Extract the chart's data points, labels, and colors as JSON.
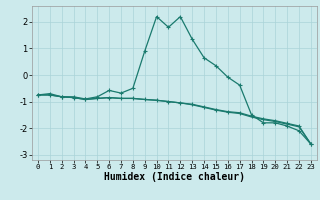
{
  "xlabel": "Humidex (Indice chaleur)",
  "background_color": "#cceaec",
  "grid_color": "#aad4d8",
  "line_color": "#1a7a6e",
  "xlim": [
    -0.5,
    23.5
  ],
  "ylim": [
    -3.2,
    2.6
  ],
  "xticks": [
    0,
    1,
    2,
    3,
    4,
    5,
    6,
    7,
    8,
    9,
    10,
    11,
    12,
    13,
    14,
    15,
    16,
    17,
    18,
    19,
    20,
    21,
    22,
    23
  ],
  "yticks": [
    -3,
    -2,
    -1,
    0,
    1,
    2
  ],
  "series1_x": [
    0,
    1,
    2,
    3,
    4,
    5,
    6,
    7,
    8,
    9,
    10,
    11,
    12,
    13,
    14,
    15,
    16,
    17,
    18,
    19,
    20,
    21,
    22,
    23
  ],
  "series1_y": [
    -0.75,
    -0.7,
    -0.82,
    -0.82,
    -0.9,
    -0.82,
    -0.58,
    -0.68,
    -0.5,
    0.9,
    2.2,
    1.8,
    2.2,
    1.35,
    0.65,
    0.35,
    -0.08,
    -0.38,
    -1.5,
    -1.8,
    -1.8,
    -1.92,
    -2.1,
    -2.6
  ],
  "series2_x": [
    0,
    1,
    2,
    3,
    4,
    5,
    6,
    7,
    8,
    9,
    10,
    11,
    12,
    13,
    14,
    15,
    16,
    17,
    18,
    19,
    20,
    21,
    22,
    23
  ],
  "series2_y": [
    -0.75,
    -0.75,
    -0.82,
    -0.85,
    -0.92,
    -0.88,
    -0.85,
    -0.88,
    -0.88,
    -0.92,
    -0.95,
    -1.0,
    -1.05,
    -1.1,
    -1.2,
    -1.3,
    -1.38,
    -1.42,
    -1.55,
    -1.65,
    -1.72,
    -1.82,
    -1.92,
    -2.6
  ],
  "series3_x": [
    0,
    1,
    2,
    3,
    4,
    5,
    6,
    7,
    8,
    9,
    10,
    11,
    12,
    13,
    14,
    15,
    16,
    17,
    18,
    19,
    20,
    21,
    22,
    23
  ],
  "series3_y": [
    -0.75,
    -0.75,
    -0.82,
    -0.85,
    -0.92,
    -0.88,
    -0.85,
    -0.88,
    -0.88,
    -0.92,
    -0.95,
    -1.0,
    -1.05,
    -1.12,
    -1.22,
    -1.32,
    -1.4,
    -1.45,
    -1.58,
    -1.68,
    -1.75,
    -1.85,
    -1.95,
    -2.6
  ]
}
